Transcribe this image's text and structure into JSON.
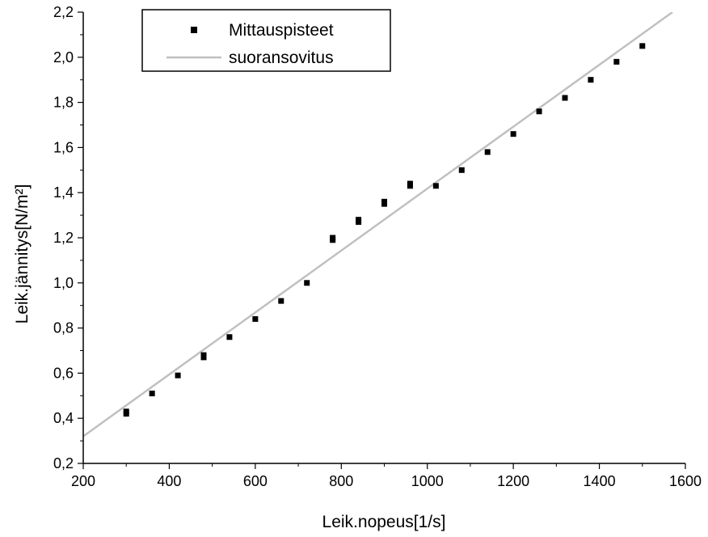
{
  "chart_data": {
    "type": "scatter",
    "title": "",
    "xlabel": "Leik.nopeus[1/s]",
    "ylabel": "Leik.jännitys[N/m²]",
    "xlim": [
      200,
      1600
    ],
    "ylim": [
      0.2,
      2.2
    ],
    "x_ticks": [
      200,
      400,
      600,
      800,
      1000,
      1200,
      1400,
      1600
    ],
    "x_tick_labels": [
      "200",
      "400",
      "600",
      "800",
      "1000",
      "1200",
      "1400",
      "1600"
    ],
    "y_ticks": [
      0.2,
      0.4,
      0.6,
      0.8,
      1.0,
      1.2,
      1.4,
      1.6,
      1.8,
      2.0,
      2.2
    ],
    "y_tick_labels": [
      "0,2",
      "0,4",
      "0,6",
      "0,8",
      "1,0",
      "1,2",
      "1,4",
      "1,6",
      "1,8",
      "2,0",
      "2,2"
    ],
    "grid": false,
    "legend_position": "top-left",
    "series": [
      {
        "name": "Mittauspisteet",
        "kind": "scatter",
        "marker": "square",
        "color": "#000000",
        "x": [
          300,
          300,
          360,
          420,
          480,
          480,
          540,
          600,
          660,
          720,
          780,
          780,
          840,
          840,
          900,
          900,
          960,
          960,
          1020,
          1080,
          1140,
          1200,
          1260,
          1320,
          1380,
          1440,
          1500
        ],
        "y": [
          0.42,
          0.43,
          0.51,
          0.59,
          0.67,
          0.68,
          0.76,
          0.84,
          0.92,
          1.0,
          1.19,
          1.2,
          1.27,
          1.28,
          1.35,
          1.36,
          1.43,
          1.44,
          1.43,
          1.5,
          1.58,
          1.66,
          1.76,
          1.82,
          1.9,
          1.98,
          2.05
        ]
      },
      {
        "name": "suoransovitus",
        "kind": "line",
        "color": "#c0c0c0",
        "x": [
          200,
          1570
        ],
        "y": [
          0.32,
          2.2
        ]
      }
    ]
  }
}
